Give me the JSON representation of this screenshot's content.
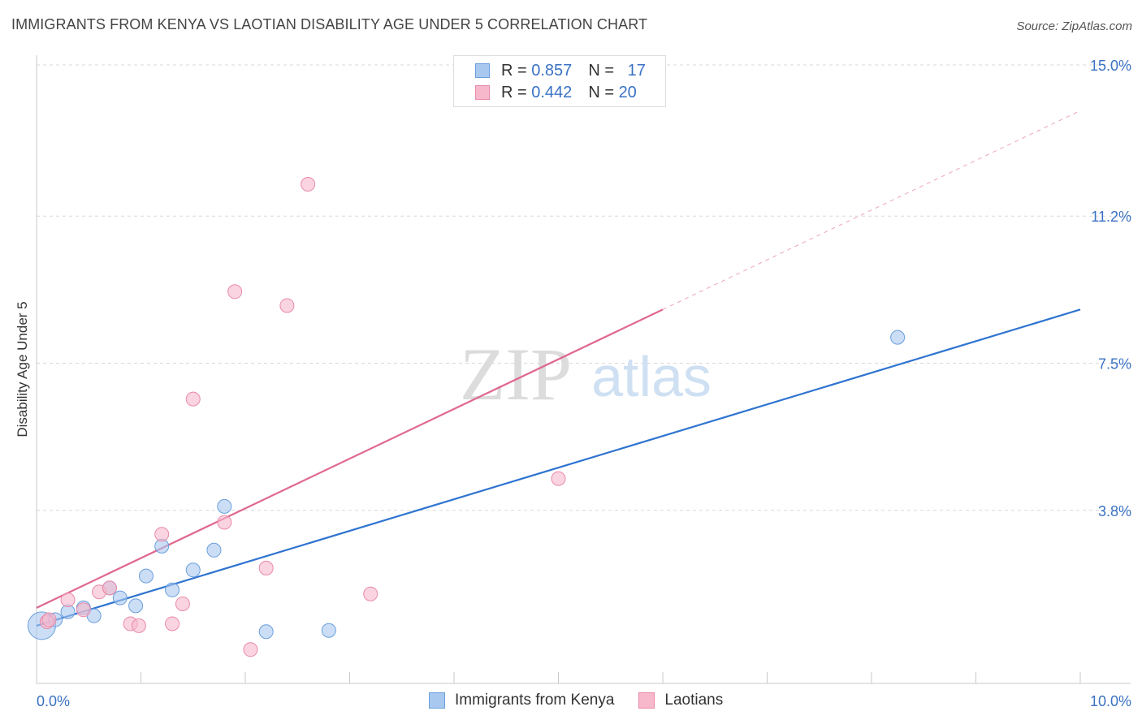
{
  "title": "IMMIGRANTS FROM KENYA VS LAOTIAN DISABILITY AGE UNDER 5 CORRELATION CHART",
  "source": "Source: ZipAtlas.com",
  "watermark": {
    "zip": "ZIP",
    "atlas": "atlas"
  },
  "legend": {
    "rows": [
      {
        "r_label": "R =",
        "r_value": "0.857",
        "n_label": "N =",
        "n_value": "17"
      },
      {
        "r_label": "R =",
        "r_value": "0.442",
        "n_label": "N =",
        "n_value": "20"
      }
    ]
  },
  "colors": {
    "kenya_fill": "#a9c8f0",
    "kenya_stroke": "#6a9fdc",
    "kenya_line": "#2f74d0",
    "laotian_fill": "#f7b8cb",
    "laotian_stroke": "#e98aa8",
    "laotian_line": "#e0678f",
    "axis_label": "#3a72c4",
    "grid": "#d8d8d8"
  },
  "chart_data": {
    "type": "scatter",
    "title": "IMMIGRANTS FROM KENYA VS LAOTIAN DISABILITY AGE UNDER 5 CORRELATION CHART",
    "xlabel": "",
    "ylabel": "Disability Age Under 5",
    "xlim": [
      0,
      10
    ],
    "ylim": [
      0,
      15
    ],
    "x_tick_labels": [
      "0.0%",
      "10.0%"
    ],
    "y_ticks": [
      3.8,
      7.5,
      11.2,
      15.0
    ],
    "y_tick_labels": [
      "3.8%",
      "7.5%",
      "11.2%",
      "15.0%"
    ],
    "grid": true,
    "legend_position": "top-center",
    "series": [
      {
        "name": "Immigrants from Kenya",
        "points": [
          {
            "x": 0.05,
            "y": 0.9,
            "big": true
          },
          {
            "x": 0.18,
            "y": 1.05
          },
          {
            "x": 0.3,
            "y": 1.25
          },
          {
            "x": 0.45,
            "y": 1.35
          },
          {
            "x": 0.55,
            "y": 1.15
          },
          {
            "x": 0.7,
            "y": 1.85
          },
          {
            "x": 0.8,
            "y": 1.6
          },
          {
            "x": 0.95,
            "y": 1.4
          },
          {
            "x": 1.05,
            "y": 2.15
          },
          {
            "x": 1.2,
            "y": 2.9
          },
          {
            "x": 1.3,
            "y": 1.8
          },
          {
            "x": 1.5,
            "y": 2.3
          },
          {
            "x": 1.7,
            "y": 2.8
          },
          {
            "x": 1.8,
            "y": 3.9
          },
          {
            "x": 2.2,
            "y": 0.75
          },
          {
            "x": 2.8,
            "y": 0.78
          },
          {
            "x": 8.25,
            "y": 8.15
          }
        ],
        "trend": {
          "x0": 0,
          "y0": 0.9,
          "x1": 10,
          "y1": 8.85
        }
      },
      {
        "name": "Laotians",
        "points": [
          {
            "x": 0.1,
            "y": 1.0
          },
          {
            "x": 0.3,
            "y": 1.55
          },
          {
            "x": 0.45,
            "y": 1.3
          },
          {
            "x": 0.6,
            "y": 1.75
          },
          {
            "x": 0.7,
            "y": 1.85
          },
          {
            "x": 0.9,
            "y": 0.95
          },
          {
            "x": 0.98,
            "y": 0.9
          },
          {
            "x": 1.2,
            "y": 3.2
          },
          {
            "x": 1.3,
            "y": 0.95
          },
          {
            "x": 1.4,
            "y": 1.45
          },
          {
            "x": 1.5,
            "y": 6.6
          },
          {
            "x": 1.8,
            "y": 3.5
          },
          {
            "x": 1.9,
            "y": 9.3
          },
          {
            "x": 2.05,
            "y": 0.3
          },
          {
            "x": 2.2,
            "y": 2.35
          },
          {
            "x": 2.4,
            "y": 8.95
          },
          {
            "x": 2.6,
            "y": 12.0
          },
          {
            "x": 3.2,
            "y": 1.7
          },
          {
            "x": 5.0,
            "y": 4.6
          },
          {
            "x": 0.12,
            "y": 1.05
          }
        ],
        "trend": {
          "x0": 0,
          "y0": 1.35,
          "x1": 6.0,
          "y1": 8.85
        },
        "trend_dashed": {
          "x0": 6.0,
          "y0": 8.85,
          "x1": 10.0,
          "y1": 13.85
        }
      }
    ]
  }
}
